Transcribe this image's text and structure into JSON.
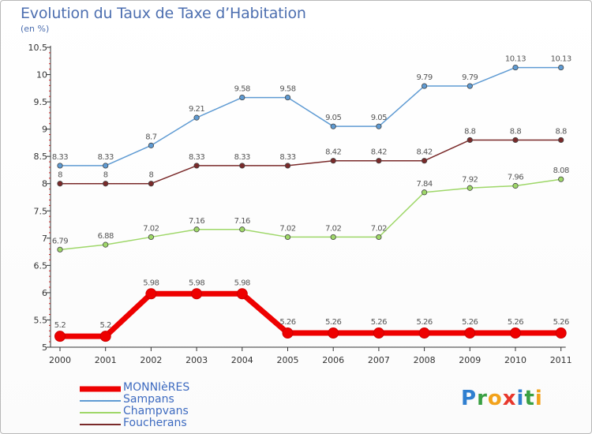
{
  "header": {
    "title": "Evolution du Taux de Taxe d’Habitation",
    "subtitle": "(en %)"
  },
  "logo": {
    "text": "Proxiti",
    "letters": [
      {
        "ch": "P",
        "color": "#2f7fd0"
      },
      {
        "ch": "r",
        "color": "#3aa043"
      },
      {
        "ch": "o",
        "color": "#f2a21b"
      },
      {
        "ch": "x",
        "color": "#e8372c"
      },
      {
        "ch": "i",
        "color": "#2f7fd0"
      },
      {
        "ch": "t",
        "color": "#3aa043"
      },
      {
        "ch": "i",
        "color": "#f2a21b"
      }
    ]
  },
  "chart_data": {
    "type": "line",
    "title": "Evolution du Taux de Taxe d’Habitation",
    "subtitle": "(en %)",
    "xlabel": "",
    "ylabel": "",
    "x": [
      "2000",
      "2001",
      "2002",
      "2003",
      "2004",
      "2005",
      "2006",
      "2007",
      "2008",
      "2009",
      "2010",
      "2011"
    ],
    "ylim": [
      5,
      10.5
    ],
    "yticks": [
      "5",
      "5.5",
      "6",
      "6.5",
      "7",
      "7.5",
      "8",
      "8.5",
      "9",
      "9.5",
      "10",
      "10.5"
    ],
    "grid": false,
    "legend_position": "bottom-left",
    "series": [
      {
        "name": "Sampans",
        "color": "#5f9bd3",
        "values": [
          8.33,
          8.33,
          8.7,
          9.21,
          9.58,
          9.58,
          9.05,
          9.05,
          9.79,
          9.79,
          10.13,
          10.13
        ],
        "labels": [
          "8.33",
          "8.33",
          "8.7",
          "9.21",
          "9.58",
          "9.58",
          "9.05",
          "9.05",
          "9.79",
          "9.79",
          "10.13",
          "10.13"
        ]
      },
      {
        "name": "Foucherans",
        "color": "#7a2a2a",
        "values": [
          8,
          8,
          8,
          8.33,
          8.33,
          8.33,
          8.42,
          8.42,
          8.42,
          8.8,
          8.8,
          8.8
        ],
        "labels": [
          "8",
          "8",
          "8",
          "8.33",
          "8.33",
          "8.33",
          "8.42",
          "8.42",
          "8.42",
          "8.8",
          "8.8",
          "8.8"
        ]
      },
      {
        "name": "Champvans",
        "color": "#9ed768",
        "values": [
          6.79,
          6.88,
          7.02,
          7.16,
          7.16,
          7.02,
          7.02,
          7.02,
          7.84,
          7.92,
          7.96,
          8.08
        ],
        "labels": [
          "6.79",
          "6.88",
          "7.02",
          "7.16",
          "7.16",
          "7.02",
          "7.02",
          "7.02",
          "7.84",
          "7.92",
          "7.96",
          "8.08"
        ]
      },
      {
        "name": "MONNIèRES",
        "color": "#ee0000",
        "values": [
          5.2,
          5.2,
          5.98,
          5.98,
          5.98,
          5.26,
          5.26,
          5.26,
          5.26,
          5.26,
          5.26,
          5.26
        ],
        "labels": [
          "5.2",
          "5.2",
          "5.98",
          "5.98",
          "5.98",
          "5.26",
          "5.26",
          "5.26",
          "5.26",
          "5.26",
          "5.26",
          "5.26"
        ]
      }
    ],
    "legend": [
      {
        "name": "MONNIèRES",
        "color": "#ee0000",
        "style": "thick"
      },
      {
        "name": "Sampans",
        "color": "#5f9bd3",
        "style": "thin"
      },
      {
        "name": "Champvans",
        "color": "#9ed768",
        "style": "thin"
      },
      {
        "name": "Foucherans",
        "color": "#7a2a2a",
        "style": "thin"
      }
    ]
  }
}
